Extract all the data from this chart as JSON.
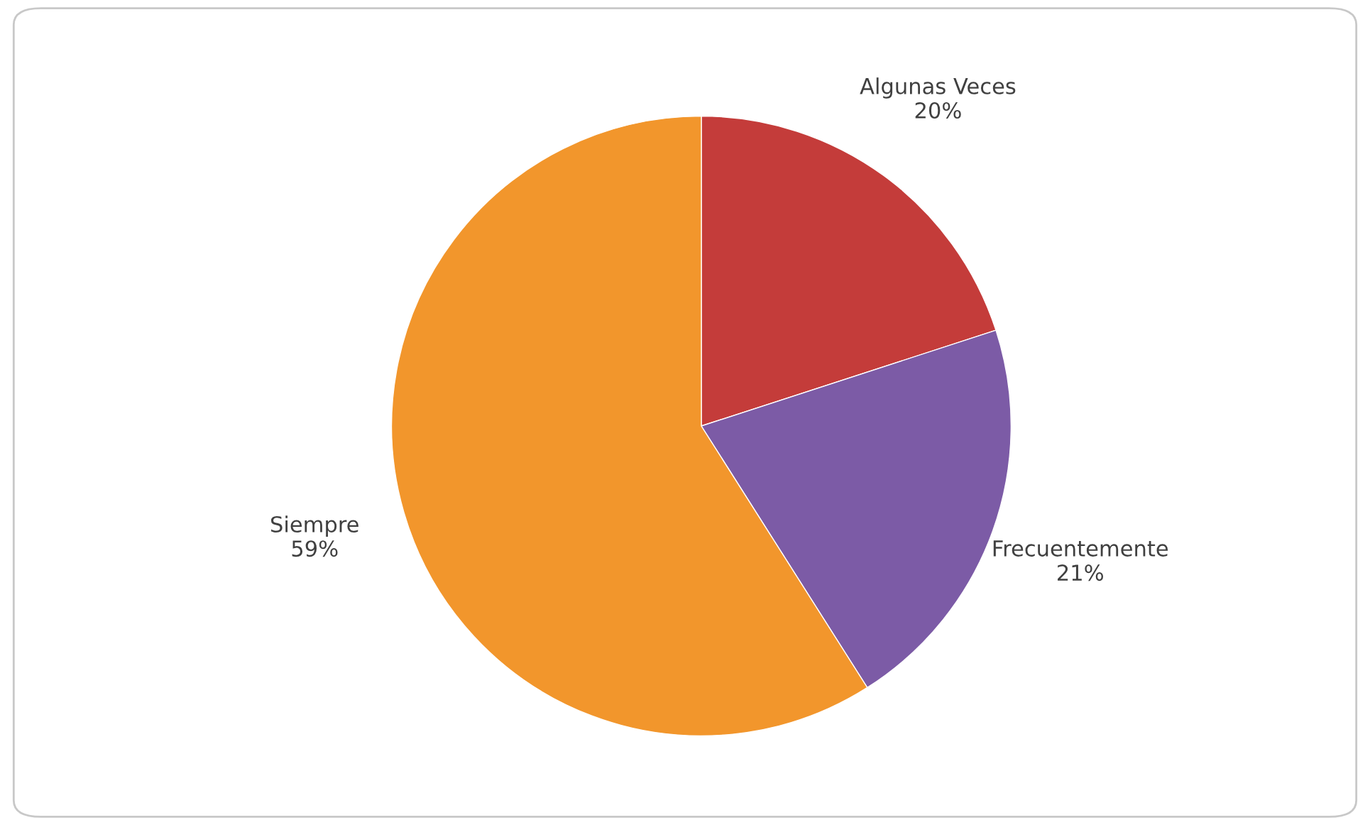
{
  "chart_data": {
    "type": "pie",
    "categories": [
      "Algunas Veces",
      "Frecuentemente",
      "Siempre"
    ],
    "values": [
      20,
      21,
      59
    ],
    "colors": [
      "#c43c3a",
      "#7c5ba6",
      "#f2962c"
    ],
    "value_labels": [
      "20%",
      "21%",
      "59%"
    ],
    "legend": false
  }
}
